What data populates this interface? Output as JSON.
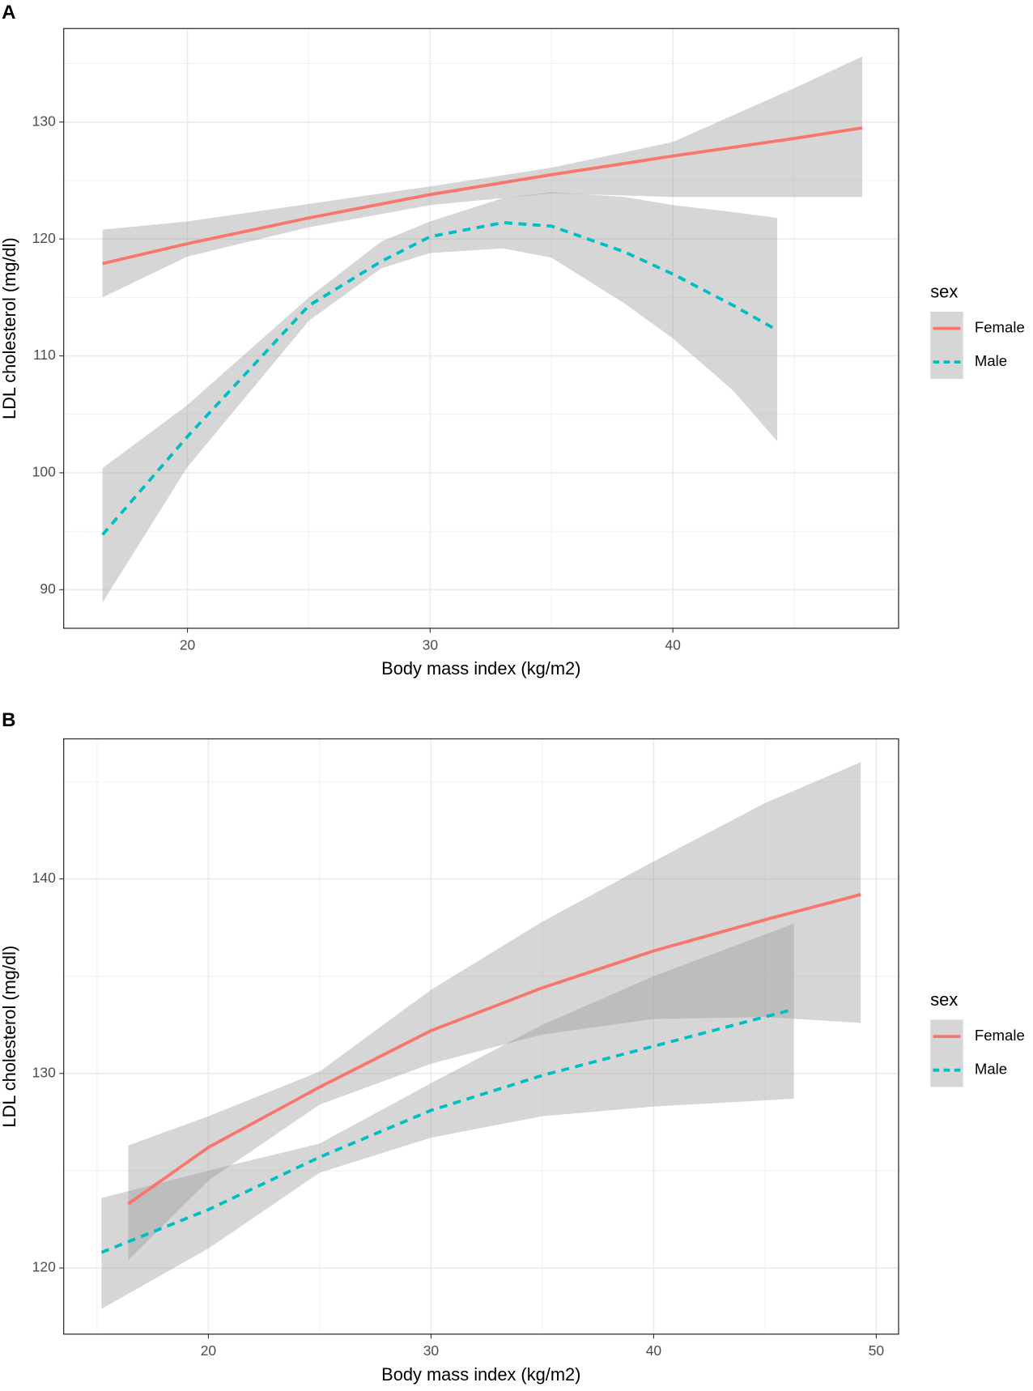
{
  "chart_data": [
    {
      "type": "line",
      "panel": "A",
      "x_label": "Body mass index (kg/m2)",
      "y_label": "LDL cholesterol (mg/dl)",
      "legend_title": "sex",
      "grid": true,
      "xlim": [
        14.9,
        49.3
      ],
      "ylim": [
        86.7,
        138.0
      ],
      "xticks": [
        20,
        30,
        40
      ],
      "yticks": [
        90,
        100,
        110,
        120,
        130
      ],
      "series": [
        {
          "name": "Female",
          "color": "#F8766D",
          "linestyle": "solid",
          "x": [
            16.5,
            20,
            25,
            30,
            35,
            40,
            45,
            47.8
          ],
          "values": [
            117.9,
            119.6,
            121.8,
            123.8,
            125.5,
            127.1,
            128.6,
            129.5
          ],
          "lower": [
            115.0,
            118.5,
            121.0,
            122.9,
            123.9,
            123.6,
            123.6,
            123.6
          ],
          "upper": [
            120.8,
            121.5,
            123.0,
            124.5,
            126.1,
            128.3,
            132.9,
            135.6
          ]
        },
        {
          "name": "Male",
          "color": "#00BFC4",
          "linestyle": "dashed",
          "x": [
            16.5,
            20,
            25,
            28,
            30,
            33,
            35,
            38,
            40,
            42.5,
            44.3
          ],
          "values": [
            94.7,
            103.1,
            114.3,
            118.1,
            120.2,
            121.4,
            121.1,
            118.9,
            117.0,
            114.3,
            112.2
          ],
          "lower": [
            88.9,
            100.5,
            113.0,
            117.5,
            118.8,
            119.2,
            118.4,
            114.5,
            111.5,
            107.0,
            102.7
          ],
          "upper": [
            100.4,
            105.8,
            115.0,
            119.8,
            121.5,
            123.5,
            124.0,
            123.6,
            122.9,
            122.3,
            121.8
          ]
        }
      ]
    },
    {
      "type": "line",
      "panel": "B",
      "x_label": "Body mass index (kg/m2)",
      "y_label": "LDL cholesterol (mg/dl)",
      "legend_title": "sex",
      "grid": true,
      "xlim": [
        13.5,
        51.0
      ],
      "ylim": [
        116.6,
        147.2
      ],
      "xticks": [
        20,
        30,
        40,
        50
      ],
      "yticks": [
        120,
        130,
        140
      ],
      "series": [
        {
          "name": "Female",
          "color": "#F8766D",
          "linestyle": "solid",
          "x": [
            16.4,
            20,
            25,
            30,
            35,
            40,
            45,
            49.3
          ],
          "values": [
            123.3,
            126.2,
            129.3,
            132.2,
            134.4,
            136.3,
            137.9,
            139.2
          ],
          "lower": [
            120.4,
            124.5,
            128.4,
            130.5,
            132.0,
            132.8,
            132.9,
            132.6
          ],
          "upper": [
            126.3,
            127.8,
            130.1,
            134.3,
            137.8,
            140.9,
            143.9,
            146.0
          ]
        },
        {
          "name": "Male",
          "color": "#00BFC4",
          "linestyle": "dashed",
          "x": [
            15.2,
            20,
            25,
            30,
            35,
            40,
            46.3
          ],
          "values": [
            120.8,
            123.0,
            125.7,
            128.1,
            129.9,
            131.4,
            133.3
          ],
          "lower": [
            117.9,
            121.0,
            124.9,
            126.7,
            127.8,
            128.3,
            128.7
          ],
          "upper": [
            123.6,
            125.0,
            126.4,
            129.5,
            132.5,
            135.0,
            137.7
          ]
        }
      ]
    }
  ]
}
